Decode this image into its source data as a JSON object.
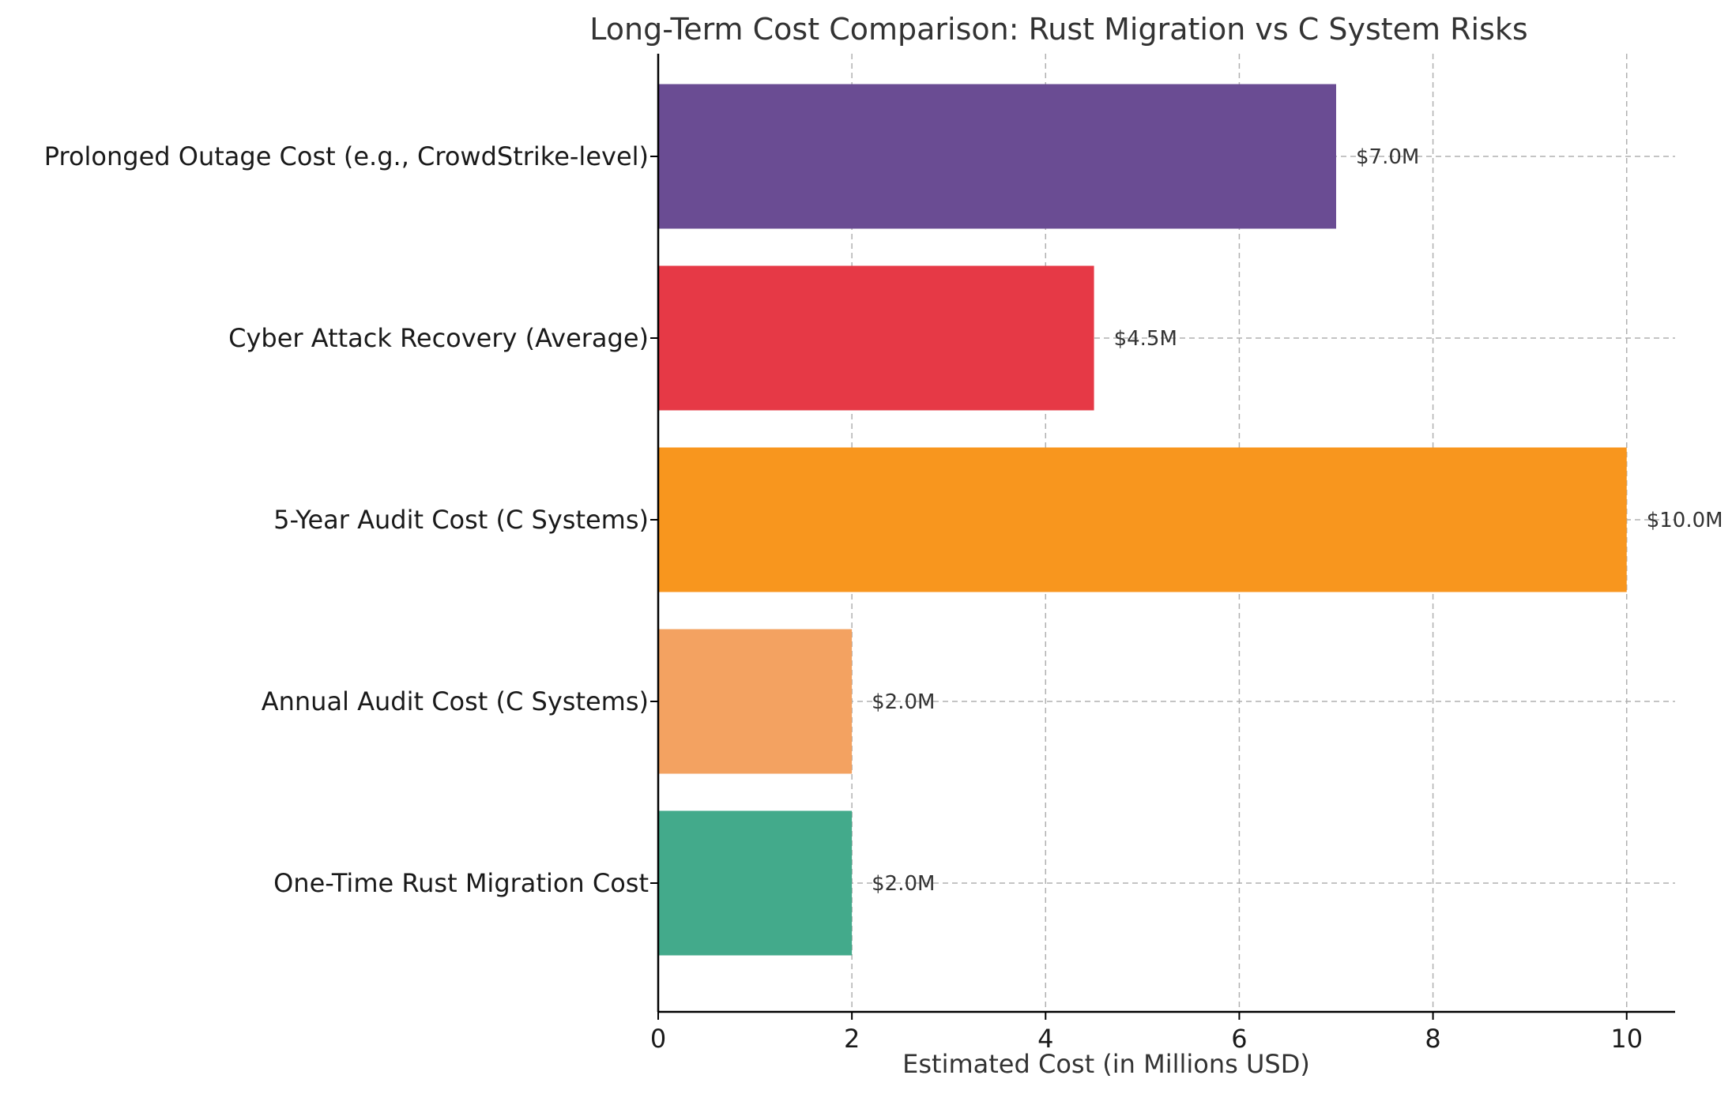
{
  "chart_data": {
    "type": "bar",
    "orientation": "horizontal",
    "title": "Long-Term Cost Comparison: Rust Migration vs C System Risks",
    "xlabel": "Estimated Cost (in Millions USD)",
    "ylabel": "",
    "xlim": [
      0,
      10.5
    ],
    "xticks": [
      0,
      2,
      4,
      6,
      8,
      10
    ],
    "xtick_labels": [
      "0",
      "2",
      "4",
      "6",
      "8",
      "10"
    ],
    "grid": true,
    "categories": [
      "One-Time Rust Migration Cost",
      "Annual Audit Cost (C Systems)",
      "5-Year Audit Cost (C Systems)",
      "Cyber Attack Recovery (Average)",
      "Prolonged Outage Cost (e.g., CrowdStrike-level)"
    ],
    "values": [
      2.0,
      2.0,
      10.0,
      4.5,
      7.0
    ],
    "value_labels": [
      "$2.0M",
      "$2.0M",
      "$10.0M",
      "$4.5M",
      "$7.0M"
    ],
    "colors": [
      "#43aa8b",
      "#f3a261",
      "#f8961e",
      "#e63946",
      "#6a4c93"
    ]
  }
}
